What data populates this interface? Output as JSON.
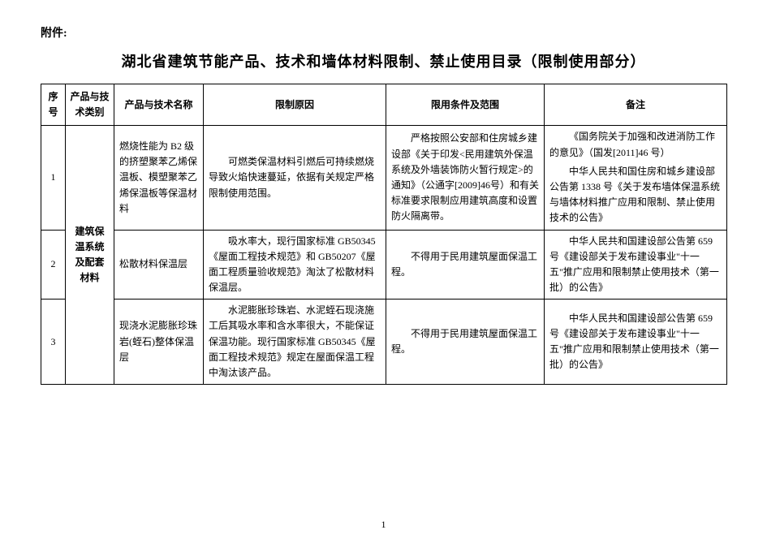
{
  "attachment_label": "附件:",
  "document_title": "湖北省建筑节能产品、技术和墙体材料限制、禁止使用目录（限制使用部分）",
  "table": {
    "headers": {
      "seq": "序号",
      "category": "产品与技术类别",
      "name": "产品与技术名称",
      "reason": "限制原因",
      "scope": "限用条件及范围",
      "remarks": "备注"
    },
    "category_label": "建筑保温系统及配套材料",
    "rows": [
      {
        "seq": "1",
        "name": "燃烧性能为 B2 级的挤塑聚苯乙烯保温板、模塑聚苯乙烯保温板等保温材料",
        "reason": "可燃类保温材料引燃后可持续燃烧导致火焰快速蔓延，依据有关规定严格限制使用范围。",
        "scope": "严格按照公安部和住房城乡建设部《关于印发<民用建筑外保温系统及外墙装饰防火暂行规定>的通知》（公通字[2009]46号）和有关标准要求限制应用建筑高度和设置防火隔离带。",
        "remarks_paras": [
          "《国务院关于加强和改进消防工作的意见》（国发[2011]46 号）",
          "中华人民共和国住房和城乡建设部公告第 1338 号《关于发布墙体保温系统与墙体材料推广应用和限制、禁止使用技术的公告》"
        ]
      },
      {
        "seq": "2",
        "name": "松散材料保温层",
        "reason": "吸水率大，现行国家标准 GB50345《屋面工程技术规范》和 GB50207《屋面工程质量验收规范》淘汰了松散材料保温层。",
        "scope": "不得用于民用建筑屋面保温工程。",
        "remarks_paras": [
          "中华人民共和国建设部公告第 659 号《建设部关于发布建设事业\"十一五\"推广应用和限制禁止使用技术（第一批）的公告》"
        ]
      },
      {
        "seq": "3",
        "name": "现浇水泥膨胀珍珠岩(蛭石)整体保温层",
        "reason": "水泥膨胀珍珠岩、水泥蛭石现浇施工后其吸水率和含水率很大，不能保证保温功能。现行国家标准 GB50345《屋面工程技术规范》规定在屋面保温工程中淘汰该产品。",
        "scope": "不得用于民用建筑屋面保温工程。",
        "remarks_paras": [
          "中华人民共和国建设部公告第 659 号《建设部关于发布建设事业\"十一五\"推广应用和限制禁止使用技术（第一批）的公告》"
        ]
      }
    ]
  },
  "page_number": "1",
  "colors": {
    "background": "#ffffff",
    "text": "#000000",
    "border": "#000000"
  }
}
